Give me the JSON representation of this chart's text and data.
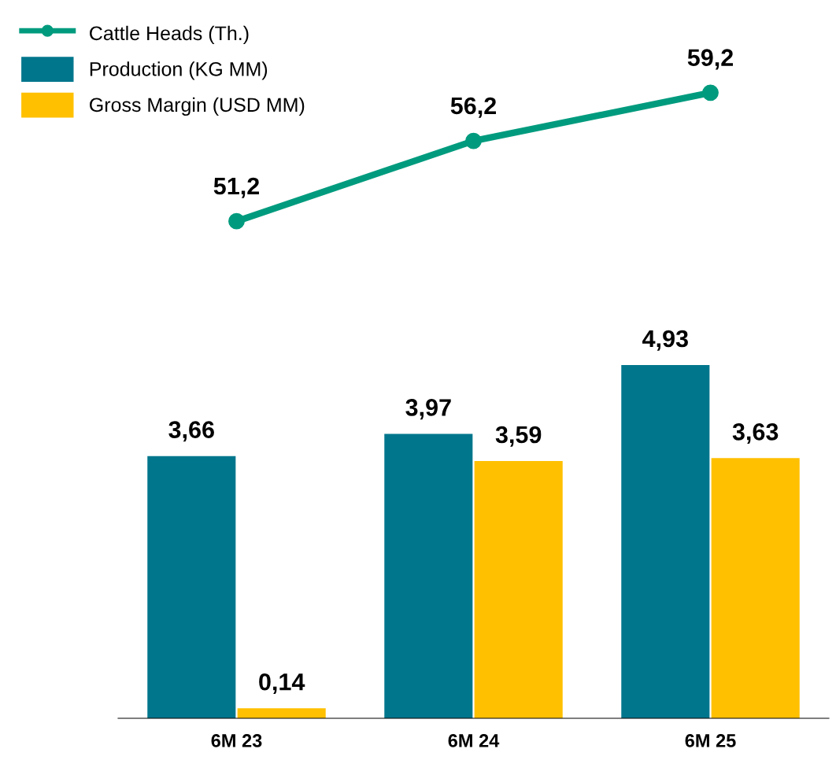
{
  "chart_data": [
    {
      "type": "line",
      "categories": [
        null,
        null,
        null
      ],
      "series": [
        {
          "name": "Cattle Heads (Th.)",
          "color": "#009b7e",
          "values": [
            51.2,
            56.2,
            59.2
          ],
          "value_labels": [
            "51,2",
            "56,2",
            "59,2"
          ]
        }
      ],
      "tick_labels": false,
      "legend": "top left",
      "marker": "circle"
    },
    {
      "type": "bar",
      "categories": [
        "6M 23",
        "6M 24",
        "6M 25"
      ],
      "series": [
        {
          "name": "Production (KG MM)",
          "color": "#00768c",
          "values": [
            3.66,
            3.97,
            4.93
          ],
          "value_labels": [
            "3,66",
            "3,97",
            "4,93"
          ]
        },
        {
          "name": "Gross Margin (USD MM)",
          "color": "#ffc000",
          "values": [
            0.14,
            3.59,
            3.63
          ],
          "value_labels": [
            "0,14",
            "3,59",
            "3,63"
          ]
        }
      ],
      "tick_labels": "x",
      "legend": "top left"
    }
  ]
}
